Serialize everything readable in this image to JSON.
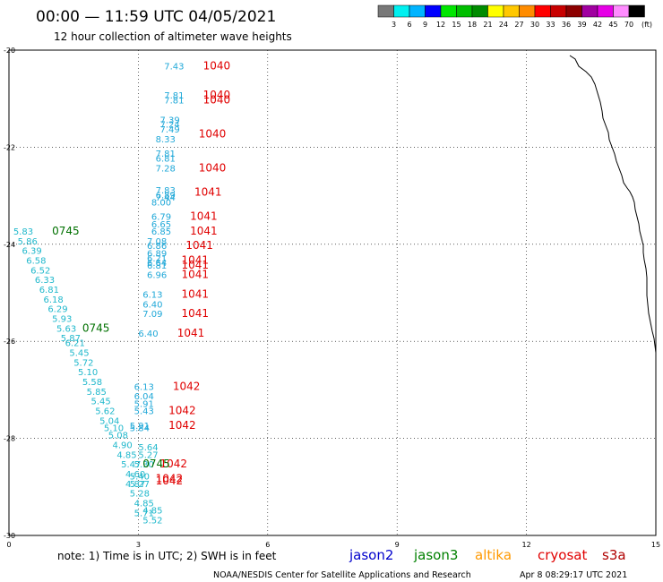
{
  "header": {
    "title": "00:00 — 11:59 UTC 04/05/2021",
    "subtitle": "12 hour collection of altimeter wave heights"
  },
  "color_scale": {
    "colors": [
      "#787878",
      "#00f0f0",
      "#00b4ff",
      "#0000ff",
      "#00e600",
      "#00be00",
      "#008c00",
      "#ffff00",
      "#ffc800",
      "#ff8c00",
      "#ff0000",
      "#c80000",
      "#8c0000",
      "#a000a0",
      "#e600e6",
      "#ff8cff",
      "#000000"
    ],
    "labels": [
      "3",
      "6",
      "9",
      "12",
      "15",
      "18",
      "21",
      "24",
      "27",
      "30",
      "33",
      "36",
      "39",
      "42",
      "45",
      "70"
    ],
    "unit": "(ft)"
  },
  "chart_data": {
    "type": "scatter",
    "xlim": [
      0,
      15
    ],
    "ylim": [
      -30,
      -20
    ],
    "x_ticks": [
      "0",
      "3",
      "6",
      "9",
      "12",
      "15"
    ],
    "y_ticks": [
      "-20",
      "-22",
      "-24",
      "-26",
      "-28",
      "-30"
    ],
    "grid": true,
    "passes": [
      {
        "label": "1040",
        "color": "#e00000",
        "x": 4.5,
        "y": -20.4
      },
      {
        "label": "1040",
        "color": "#e00000",
        "x": 4.5,
        "y": -21.0
      },
      {
        "label": "1040",
        "color": "#e00000",
        "x": 4.5,
        "y": -21.1
      },
      {
        "label": "1040",
        "color": "#e00000",
        "x": 4.4,
        "y": -21.8
      },
      {
        "label": "1040",
        "color": "#e00000",
        "x": 4.4,
        "y": -22.5
      },
      {
        "label": "1041",
        "color": "#e00000",
        "x": 4.3,
        "y": -23.0
      },
      {
        "label": "1041",
        "color": "#e00000",
        "x": 4.2,
        "y": -23.5
      },
      {
        "label": "1041",
        "color": "#e00000",
        "x": 4.2,
        "y": -23.8
      },
      {
        "label": "1041",
        "color": "#e00000",
        "x": 4.1,
        "y": -24.1
      },
      {
        "label": "1041",
        "color": "#e00000",
        "x": 4.0,
        "y": -24.4
      },
      {
        "label": "1041",
        "color": "#e00000",
        "x": 4.0,
        "y": -24.5
      },
      {
        "label": "1041",
        "color": "#e00000",
        "x": 4.0,
        "y": -24.7
      },
      {
        "label": "1041",
        "color": "#e00000",
        "x": 4.0,
        "y": -25.1
      },
      {
        "label": "1041",
        "color": "#e00000",
        "x": 4.0,
        "y": -25.5
      },
      {
        "label": "1041",
        "color": "#e00000",
        "x": 3.9,
        "y": -25.9
      },
      {
        "label": "1042",
        "color": "#e00000",
        "x": 3.8,
        "y": -27.0
      },
      {
        "label": "1042",
        "color": "#e00000",
        "x": 3.7,
        "y": -27.5
      },
      {
        "label": "1042",
        "color": "#e00000",
        "x": 3.7,
        "y": -27.8
      },
      {
        "label": "1042",
        "color": "#e00000",
        "x": 3.5,
        "y": -28.6
      },
      {
        "label": "1042",
        "color": "#e00000",
        "x": 3.4,
        "y": -28.9
      },
      {
        "label": "1042",
        "color": "#e00000",
        "x": 3.4,
        "y": -28.95
      },
      {
        "label": "0745",
        "color": "#007000",
        "x": 1.0,
        "y": -23.8
      },
      {
        "label": "0745",
        "color": "#007000",
        "x": 1.7,
        "y": -25.8
      },
      {
        "label": "0745",
        "color": "#007000",
        "x": 3.1,
        "y": -28.6
      }
    ],
    "jason3_values": [
      {
        "v": "5.83",
        "x": 0.1,
        "y": -23.8
      },
      {
        "v": "5.86",
        "x": 0.2,
        "y": -24.0
      },
      {
        "v": "6.39",
        "x": 0.3,
        "y": -24.2
      },
      {
        "v": "6.58",
        "x": 0.4,
        "y": -24.4
      },
      {
        "v": "6.52",
        "x": 0.5,
        "y": -24.6
      },
      {
        "v": "6.33",
        "x": 0.6,
        "y": -24.8
      },
      {
        "v": "6.81",
        "x": 0.7,
        "y": -25.0
      },
      {
        "v": "6.18",
        "x": 0.8,
        "y": -25.2
      },
      {
        "v": "6.29",
        "x": 0.9,
        "y": -25.4
      },
      {
        "v": "5.93",
        "x": 1.0,
        "y": -25.6
      },
      {
        "v": "5.63",
        "x": 1.1,
        "y": -25.8
      },
      {
        "v": "5.87",
        "x": 1.2,
        "y": -26.0
      },
      {
        "v": "6.21",
        "x": 1.3,
        "y": -26.1
      },
      {
        "v": "5.45",
        "x": 1.4,
        "y": -26.3
      },
      {
        "v": "5.72",
        "x": 1.5,
        "y": -26.5
      },
      {
        "v": "5.10",
        "x": 1.6,
        "y": -26.7
      },
      {
        "v": "5.58",
        "x": 1.7,
        "y": -26.9
      },
      {
        "v": "5.85",
        "x": 1.8,
        "y": -27.1
      },
      {
        "v": "5.45",
        "x": 1.9,
        "y": -27.3
      },
      {
        "v": "5.62",
        "x": 2.0,
        "y": -27.5
      },
      {
        "v": "5.04",
        "x": 2.1,
        "y": -27.7
      },
      {
        "v": "5.10",
        "x": 2.2,
        "y": -27.85
      },
      {
        "v": "5.08",
        "x": 2.3,
        "y": -28.0
      },
      {
        "v": "4.90",
        "x": 2.4,
        "y": -28.2
      },
      {
        "v": "4.85",
        "x": 2.5,
        "y": -28.4
      },
      {
        "v": "5.47",
        "x": 2.6,
        "y": -28.6
      },
      {
        "v": "4.60",
        "x": 2.7,
        "y": -28.8
      },
      {
        "v": "4.87",
        "x": 2.7,
        "y": -29.0
      },
      {
        "v": "5.28",
        "x": 2.8,
        "y": -29.2
      },
      {
        "v": "4.85",
        "x": 2.9,
        "y": -29.4
      },
      {
        "v": "5.71",
        "x": 2.9,
        "y": -29.6
      },
      {
        "v": "4.85",
        "x": 3.1,
        "y": -29.55
      },
      {
        "v": "5.52",
        "x": 3.1,
        "y": -29.75
      },
      {
        "v": "5.64",
        "x": 3.0,
        "y": -28.25
      },
      {
        "v": "5.27",
        "x": 3.0,
        "y": -28.4
      },
      {
        "v": "5.30",
        "x": 2.9,
        "y": -28.6
      },
      {
        "v": "5.40",
        "x": 2.8,
        "y": -28.85
      },
      {
        "v": "5.27",
        "x": 2.8,
        "y": -29.0
      }
    ],
    "jason2_values": [
      {
        "v": "7.43",
        "x": 3.6,
        "y": -20.4
      },
      {
        "v": "7.81",
        "x": 3.6,
        "y": -21.0
      },
      {
        "v": "7.81",
        "x": 3.6,
        "y": -21.1
      },
      {
        "v": "7.39",
        "x": 3.5,
        "y": -21.5
      },
      {
        "v": "7.24",
        "x": 3.5,
        "y": -21.6
      },
      {
        "v": "7.49",
        "x": 3.5,
        "y": -21.7
      },
      {
        "v": "8.33",
        "x": 3.4,
        "y": -21.9
      },
      {
        "v": "7.81",
        "x": 3.4,
        "y": -22.2
      },
      {
        "v": "6.81",
        "x": 3.4,
        "y": -22.3
      },
      {
        "v": "7.28",
        "x": 3.4,
        "y": -22.5
      },
      {
        "v": "7.83",
        "x": 3.4,
        "y": -22.95
      },
      {
        "v": "6.89",
        "x": 3.4,
        "y": -23.05
      },
      {
        "v": "7.44",
        "x": 3.4,
        "y": -23.1
      },
      {
        "v": "8.00",
        "x": 3.3,
        "y": -23.2
      },
      {
        "v": "6.79",
        "x": 3.3,
        "y": -23.5
      },
      {
        "v": "6.65",
        "x": 3.3,
        "y": -23.65
      },
      {
        "v": "6.85",
        "x": 3.3,
        "y": -23.8
      },
      {
        "v": "7.08",
        "x": 3.2,
        "y": -24.0
      },
      {
        "v": "6.86",
        "x": 3.2,
        "y": -24.1
      },
      {
        "v": "6.89",
        "x": 3.2,
        "y": -24.25
      },
      {
        "v": "6.21",
        "x": 3.2,
        "y": -24.35
      },
      {
        "v": "6.64",
        "x": 3.2,
        "y": -24.45
      },
      {
        "v": "6.81",
        "x": 3.2,
        "y": -24.5
      },
      {
        "v": "6.96",
        "x": 3.2,
        "y": -24.7
      },
      {
        "v": "6.13",
        "x": 3.1,
        "y": -25.1
      },
      {
        "v": "6.40",
        "x": 3.1,
        "y": -25.3
      },
      {
        "v": "7.09",
        "x": 3.1,
        "y": -25.5
      },
      {
        "v": "6.40",
        "x": 3.0,
        "y": -25.9
      },
      {
        "v": "6.13",
        "x": 2.9,
        "y": -27.0
      },
      {
        "v": "6.04",
        "x": 2.9,
        "y": -27.2
      },
      {
        "v": "5.91",
        "x": 2.9,
        "y": -27.35
      },
      {
        "v": "5.43",
        "x": 2.9,
        "y": -27.5
      },
      {
        "v": "5.91",
        "x": 2.8,
        "y": -27.8
      },
      {
        "v": "5.84",
        "x": 2.8,
        "y": -27.85
      }
    ]
  },
  "note": "note:  1) Time is in UTC; 2) SWH is in feet",
  "satellites": [
    {
      "name": "jason2",
      "color": "#0000cc"
    },
    {
      "name": "jason3",
      "color": "#008000"
    },
    {
      "name": "altika",
      "color": "#ff9900"
    },
    {
      "name": "cryosat",
      "color": "#e00000"
    },
    {
      "name": "s3a",
      "color": "#b00000"
    }
  ],
  "footer": {
    "credit": "NOAA/NESDIS Center for Satellite Applications and Research",
    "timestamp": "Apr  8 08:29:17 UTC 2021"
  }
}
